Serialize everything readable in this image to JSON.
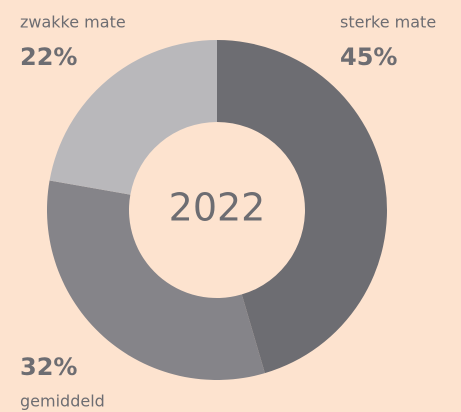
{
  "chart_data": {
    "type": "donut",
    "center_text": "2022",
    "categories": [
      "sterke mate",
      "gemiddeld",
      "zwakke mate"
    ],
    "values": [
      45,
      32,
      22
    ],
    "value_labels": [
      "45%",
      "32%",
      "22%"
    ],
    "colors": [
      "#6d6d72",
      "#858489",
      "#b9b8bb"
    ]
  }
}
